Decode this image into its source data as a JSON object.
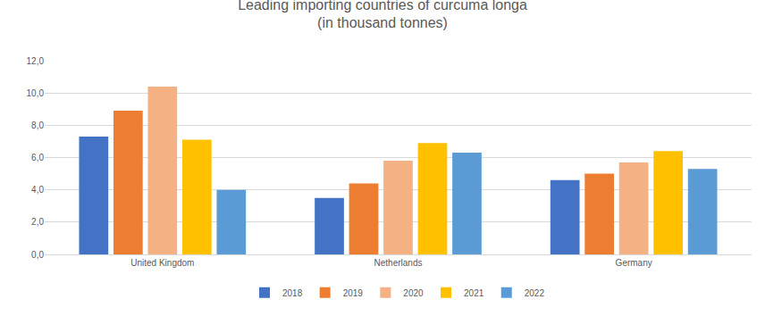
{
  "chart_data": {
    "type": "bar",
    "title": "Leading importing countries of curcuma longa",
    "subtitle": "(in thousand tonnes)",
    "categories": [
      "United Kingdom",
      "Netherlands",
      "Germany"
    ],
    "series": [
      {
        "name": "2018",
        "color": "#4472c4",
        "values": [
          7.3,
          3.5,
          4.6
        ]
      },
      {
        "name": "2019",
        "color": "#ed7d31",
        "values": [
          8.9,
          4.4,
          5.0
        ]
      },
      {
        "name": "2020",
        "color": "#f4b183",
        "values": [
          10.4,
          5.8,
          5.7
        ]
      },
      {
        "name": "2021",
        "color": "#ffc000",
        "values": [
          7.1,
          6.9,
          6.4
        ]
      },
      {
        "name": "2022",
        "color": "#5b9bd5",
        "values": [
          4.0,
          6.3,
          5.3
        ]
      }
    ],
    "ylim": [
      0,
      12
    ],
    "yticks": [
      {
        "value": 0,
        "label": "0,0"
      },
      {
        "value": 2,
        "label": "2,0"
      },
      {
        "value": 4,
        "label": "4,0"
      },
      {
        "value": 6,
        "label": "6,0"
      },
      {
        "value": 8,
        "label": "8,0"
      },
      {
        "value": 10,
        "label": "10,0"
      },
      {
        "value": 12,
        "label": "12,0"
      }
    ],
    "grid": true,
    "legend": "bottom"
  }
}
